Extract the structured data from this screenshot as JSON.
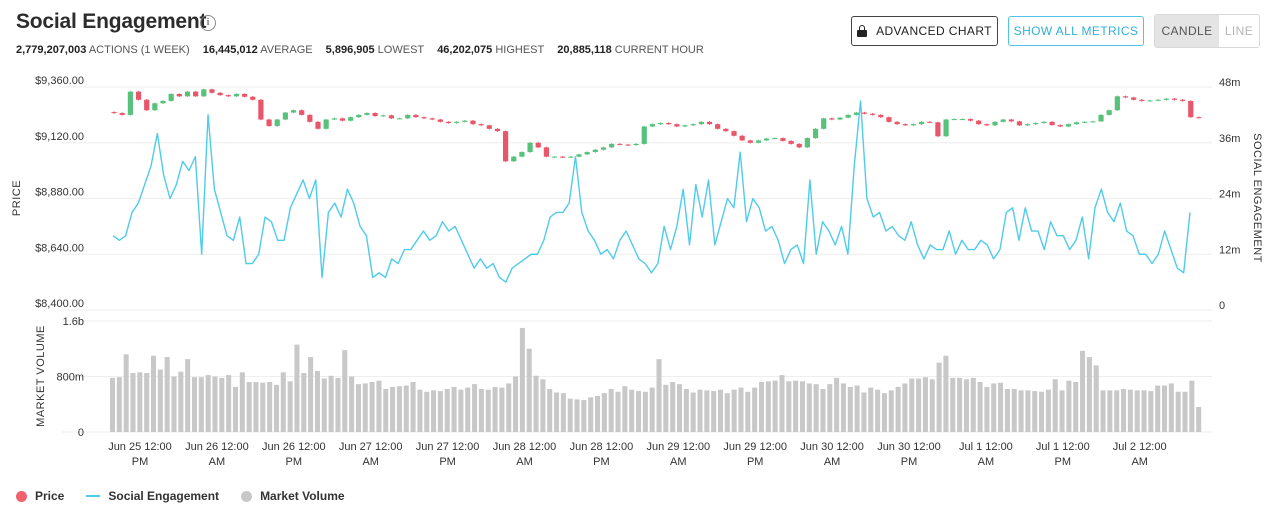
{
  "title": "Social Engagement",
  "info_icon": "i",
  "stats": [
    {
      "value": "2,779,207,003",
      "label": "ACTIONS (1 WEEK)"
    },
    {
      "value": "16,445,012",
      "label": "AVERAGE"
    },
    {
      "value": "5,896,905",
      "label": "LOWEST"
    },
    {
      "value": "46,202,075",
      "label": "HIGHEST"
    },
    {
      "value": "20,885,118",
      "label": "CURRENT HOUR"
    }
  ],
  "buttons": {
    "advanced_chart": "ADVANCED CHART",
    "show_all_metrics": "SHOW ALL METRICS"
  },
  "toggle": {
    "candle": "CANDLE",
    "line": "LINE",
    "selected": "candle"
  },
  "legend": [
    {
      "label": "Price",
      "color": "#f0626c",
      "shape": "dot"
    },
    {
      "label": "Social Engagement",
      "color": "#4fcbeb",
      "shape": "line"
    },
    {
      "label": "Market Volume",
      "color": "#c8c8c8",
      "shape": "dot"
    }
  ],
  "colors": {
    "up": "#58c27d",
    "down": "#e8566a",
    "engagement": "#4fcbeb",
    "volume": "#c8c8c8",
    "grid": "#eeeeee"
  },
  "chart_data": {
    "type": "candlestick-line-bar",
    "title": "",
    "price_axis": {
      "label": "PRICE",
      "ticks": [
        "$9,360.00",
        "$9,120.00",
        "$8,880.00",
        "$8,640.00",
        "$8,400.00"
      ],
      "ylim": [
        8400,
        9360
      ]
    },
    "engagement_axis": {
      "label": "SOCIAL ENGAGEMENT",
      "ticks": [
        "48m",
        "36m",
        "24m",
        "12m",
        "0"
      ],
      "ylim": [
        0,
        48
      ]
    },
    "volume_axis": {
      "label": "MARKET VOLUME",
      "ticks": [
        "1.6b",
        "800m",
        "0"
      ],
      "ylim": [
        0,
        1600
      ]
    },
    "x_ticks": [
      {
        "line1": "Jun 25 12:00",
        "line2": "PM"
      },
      {
        "line1": "Jun 26 12:00",
        "line2": "AM"
      },
      {
        "line1": "Jun 26 12:00",
        "line2": "PM"
      },
      {
        "line1": "Jun 27 12:00",
        "line2": "AM"
      },
      {
        "line1": "Jun 27 12:00",
        "line2": "PM"
      },
      {
        "line1": "Jun 28 12:00",
        "line2": "AM"
      },
      {
        "line1": "Jun 28 12:00",
        "line2": "PM"
      },
      {
        "line1": "Jun 29 12:00",
        "line2": "AM"
      },
      {
        "line1": "Jun 29 12:00",
        "line2": "PM"
      },
      {
        "line1": "Jun 30 12:00",
        "line2": "AM"
      },
      {
        "line1": "Jun 30 12:00",
        "line2": "PM"
      },
      {
        "line1": "Jul 1 12:00",
        "line2": "AM"
      },
      {
        "line1": "Jul 1 12:00",
        "line2": "PM"
      },
      {
        "line1": "Jul 2 12:00",
        "line2": "AM"
      }
    ],
    "price_close": [
      9248,
      9240,
      9340,
      9305,
      9260,
      9290,
      9300,
      9330,
      9320,
      9340,
      9320,
      9350,
      9335,
      9325,
      9320,
      9330,
      9318,
      9305,
      9220,
      9192,
      9220,
      9250,
      9260,
      9240,
      9210,
      9180,
      9220,
      9225,
      9215,
      9230,
      9240,
      9248,
      9235,
      9238,
      9225,
      9225,
      9240,
      9230,
      9225,
      9220,
      9210,
      9205,
      9210,
      9215,
      9200,
      9195,
      9180,
      9170,
      9040,
      9060,
      9080,
      9120,
      9100,
      9060,
      9060,
      9058,
      9060,
      9070,
      9080,
      9090,
      9100,
      9115,
      9112,
      9110,
      9115,
      9190,
      9200,
      9205,
      9200,
      9190,
      9195,
      9200,
      9210,
      9200,
      9180,
      9170,
      9150,
      9130,
      9120,
      9130,
      9138,
      9140,
      9128,
      9115,
      9100,
      9140,
      9180,
      9225,
      9220,
      9228,
      9240,
      9250,
      9245,
      9240,
      9230,
      9210,
      9200,
      9195,
      9200,
      9210,
      9208,
      9148,
      9220,
      9222,
      9222,
      9215,
      9200,
      9195,
      9210,
      9220,
      9212,
      9195,
      9200,
      9205,
      9210,
      9196,
      9190,
      9200,
      9208,
      9210,
      9212,
      9240,
      9260,
      9320,
      9315,
      9305,
      9300,
      9302,
      9305,
      9310,
      9305,
      9300,
      9230,
      9228
    ],
    "engagement": [
      16,
      15,
      16,
      21,
      23,
      27,
      31,
      38,
      29,
      24,
      27,
      32,
      30,
      33,
      12,
      42,
      26,
      21,
      16,
      15,
      20,
      10,
      10,
      12,
      20,
      19,
      15,
      15,
      22,
      25,
      28,
      24,
      28,
      7,
      21,
      23,
      20,
      26,
      23,
      18,
      16,
      7,
      8,
      7,
      11,
      10,
      13,
      13,
      15,
      17,
      15,
      16,
      19,
      17,
      18,
      15,
      12,
      9,
      11,
      9,
      10,
      7,
      6,
      9,
      10,
      11,
      12,
      12,
      15,
      20,
      21,
      21,
      23,
      33,
      21,
      17,
      15,
      12,
      13,
      11,
      15,
      17,
      14,
      11,
      10,
      8,
      10,
      18,
      13,
      18,
      26,
      14,
      27,
      20,
      28,
      14,
      19,
      24,
      22,
      34,
      19,
      24,
      22,
      17,
      18,
      15,
      10,
      13,
      14,
      10,
      28,
      12,
      19,
      17,
      14,
      18,
      12,
      31,
      45,
      24,
      20,
      21,
      17,
      18,
      16,
      15,
      19,
      14,
      11,
      14,
      13,
      13,
      17,
      12,
      15,
      13,
      13,
      15,
      14,
      11,
      13,
      21,
      22,
      15,
      22,
      17,
      17,
      13,
      19,
      16,
      16,
      13,
      15,
      20,
      11,
      22,
      26,
      21,
      19,
      23,
      17,
      16,
      12,
      12,
      10,
      12,
      17,
      13,
      9,
      8,
      21
    ],
    "volume": [
      780,
      790,
      1120,
      850,
      860,
      850,
      1100,
      900,
      1080,
      800,
      870,
      1050,
      790,
      790,
      820,
      800,
      780,
      820,
      650,
      860,
      720,
      720,
      710,
      720,
      680,
      860,
      730,
      1260,
      850,
      1080,
      880,
      770,
      810,
      780,
      1180,
      800,
      690,
      700,
      720,
      740,
      620,
      650,
      660,
      670,
      720,
      610,
      580,
      600,
      590,
      620,
      650,
      610,
      640,
      690,
      620,
      610,
      650,
      640,
      700,
      800,
      1500,
      1200,
      810,
      760,
      620,
      570,
      560,
      480,
      470,
      460,
      500,
      520,
      560,
      620,
      580,
      660,
      610,
      590,
      580,
      640,
      1050,
      680,
      720,
      690,
      620,
      570,
      610,
      600,
      590,
      610,
      560,
      610,
      640,
      580,
      640,
      720,
      730,
      740,
      820,
      730,
      740,
      730,
      700,
      690,
      620,
      690,
      780,
      700,
      650,
      670,
      570,
      640,
      610,
      560,
      600,
      650,
      700,
      770,
      770,
      790,
      760,
      1000,
      1100,
      780,
      780,
      760,
      780,
      720,
      650,
      700,
      710,
      620,
      620,
      600,
      600,
      590,
      580,
      610,
      760,
      600,
      740,
      720,
      1170,
      1080,
      960,
      600,
      600,
      600,
      620,
      610,
      600,
      600,
      590,
      670,
      670,
      700,
      580,
      580,
      740,
      360
    ]
  }
}
